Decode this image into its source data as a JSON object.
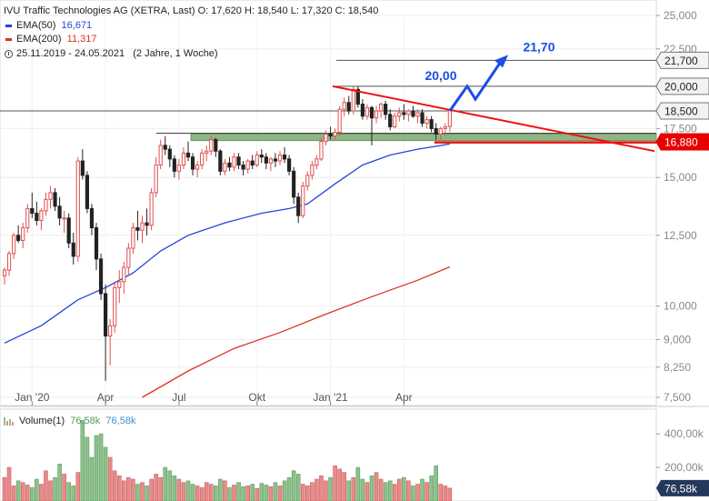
{
  "legend": {
    "title": "IVU Traffic Technologies  AG (XETRA, Last)",
    "ohlc": "O: 17,620  H: 18,540  L: 17,320  C: 18,540",
    "ema50_label": "EMA(50)",
    "ema50_value": "16,671",
    "ema200_label": "EMA(200)",
    "ema200_value": "11,317",
    "period": "25.11.2019 - 24.05.2021",
    "period_note": "(2 Jahre, 1 Woche)"
  },
  "volume_legend": {
    "label": "Volume(1)",
    "value1": "76,58k",
    "value2": "76,58k"
  },
  "colors": {
    "up": "#e05050",
    "down": "#222222",
    "ema50": "#2244dd",
    "ema200": "#dd3322",
    "trendline": "#ee1111",
    "arrow": "#1a4ee6",
    "support_fill": "#8fb585",
    "current_price_badge": "#e60000",
    "vol_up": "#e98a8a",
    "vol_down": "#8cc08c",
    "vol_badge": "#24385c"
  },
  "annotations": {
    "arrow_target_1": "20,00",
    "arrow_target_2": "21,70"
  },
  "chart_data": {
    "type": "candlestick",
    "price_axis": {
      "scale": "log",
      "range": [
        7.5,
        25.0
      ],
      "ticks": [
        "25,000",
        "22,500",
        "17,500",
        "15,000",
        "12,500",
        "10,000",
        "9,000",
        "8,250",
        "7,500"
      ],
      "tick_values": [
        25.0,
        22.5,
        17.5,
        15.0,
        12.5,
        10.0,
        9.0,
        8.25,
        7.5
      ]
    },
    "x_axis": {
      "labels": [
        "Jan '20",
        "Apr",
        "Jul",
        "Okt",
        "Jan '21",
        "Apr"
      ]
    },
    "price_levels": [
      {
        "label": "21,700",
        "value": 21.7,
        "style": "plain"
      },
      {
        "label": "20,000",
        "value": 20.0,
        "style": "plain"
      },
      {
        "label": "18,500",
        "value": 18.5,
        "style": "plain"
      },
      {
        "label": "16,880",
        "value": 16.88,
        "style": "current"
      }
    ],
    "support_zone": [
      16.85,
      17.2
    ],
    "trendline": {
      "start": [
        "Jan '21",
        20.0
      ],
      "end_value": 16.3
    },
    "candles": [
      [
        11.0,
        11.3,
        10.7,
        11.2
      ],
      [
        11.2,
        11.9,
        11.0,
        11.8
      ],
      [
        11.8,
        12.6,
        11.6,
        12.5
      ],
      [
        12.5,
        12.9,
        12.2,
        12.3
      ],
      [
        12.3,
        13.0,
        12.0,
        12.8
      ],
      [
        12.8,
        13.8,
        12.6,
        13.6
      ],
      [
        13.6,
        14.3,
        13.2,
        13.4
      ],
      [
        13.4,
        13.9,
        12.9,
        13.1
      ],
      [
        13.1,
        13.6,
        12.7,
        13.5
      ],
      [
        13.5,
        14.3,
        13.3,
        14.0
      ],
      [
        14.0,
        14.6,
        13.6,
        14.3
      ],
      [
        14.3,
        14.5,
        13.5,
        13.7
      ],
      [
        13.7,
        14.1,
        12.9,
        13.2
      ],
      [
        13.2,
        13.5,
        12.6,
        13.2
      ],
      [
        13.2,
        13.4,
        12.0,
        12.2
      ],
      [
        12.2,
        12.6,
        11.4,
        11.7
      ],
      [
        11.7,
        16.0,
        11.5,
        15.8
      ],
      [
        15.8,
        16.4,
        14.9,
        15.1
      ],
      [
        15.1,
        15.3,
        13.4,
        13.6
      ],
      [
        13.6,
        13.8,
        12.5,
        12.8
      ],
      [
        12.8,
        13.0,
        11.2,
        11.6
      ],
      [
        11.6,
        11.8,
        10.2,
        10.4
      ],
      [
        10.4,
        10.7,
        7.9,
        9.1
      ],
      [
        9.1,
        9.6,
        8.3,
        9.4
      ],
      [
        9.4,
        10.8,
        9.2,
        10.6
      ],
      [
        10.6,
        11.2,
        10.1,
        10.8
      ],
      [
        10.8,
        11.5,
        10.4,
        11.3
      ],
      [
        11.3,
        12.2,
        11.0,
        12.0
      ],
      [
        12.0,
        13.0,
        11.8,
        12.8
      ],
      [
        12.8,
        13.5,
        12.3,
        12.7
      ],
      [
        12.7,
        13.3,
        12.2,
        13.0
      ],
      [
        13.0,
        13.6,
        12.5,
        12.9
      ],
      [
        12.9,
        14.5,
        12.7,
        14.3
      ],
      [
        14.3,
        16.0,
        14.1,
        15.6
      ],
      [
        15.6,
        16.9,
        15.4,
        16.6
      ],
      [
        16.6,
        17.1,
        16.1,
        16.4
      ],
      [
        16.4,
        16.6,
        15.5,
        15.9
      ],
      [
        15.9,
        16.1,
        15.0,
        15.3
      ],
      [
        15.3,
        15.9,
        14.9,
        15.6
      ],
      [
        15.6,
        16.5,
        15.4,
        16.2
      ],
      [
        16.2,
        16.8,
        15.8,
        16.0
      ],
      [
        16.0,
        16.2,
        15.1,
        15.4
      ],
      [
        15.4,
        15.8,
        15.0,
        15.6
      ],
      [
        15.6,
        16.4,
        15.4,
        16.2
      ],
      [
        16.2,
        16.6,
        15.8,
        16.3
      ],
      [
        16.3,
        17.1,
        16.1,
        16.9
      ],
      [
        16.9,
        17.0,
        16.0,
        16.3
      ],
      [
        16.3,
        16.4,
        15.1,
        15.3
      ],
      [
        15.3,
        15.9,
        15.1,
        15.7
      ],
      [
        15.7,
        16.0,
        15.3,
        15.5
      ],
      [
        15.5,
        16.2,
        15.3,
        16.0
      ],
      [
        16.0,
        16.2,
        15.4,
        15.6
      ],
      [
        15.6,
        15.8,
        15.1,
        15.4
      ],
      [
        15.4,
        15.9,
        15.2,
        15.8
      ],
      [
        15.8,
        16.1,
        15.4,
        15.6
      ],
      [
        15.6,
        16.3,
        15.5,
        16.1
      ],
      [
        16.1,
        16.4,
        15.7,
        16.0
      ],
      [
        16.0,
        16.2,
        15.4,
        15.7
      ],
      [
        15.7,
        16.0,
        15.3,
        15.9
      ],
      [
        15.9,
        16.2,
        15.5,
        15.8
      ],
      [
        15.8,
        16.3,
        15.6,
        16.1
      ],
      [
        16.1,
        16.5,
        15.7,
        15.9
      ],
      [
        15.9,
        16.1,
        15.1,
        15.3
      ],
      [
        15.3,
        15.5,
        13.8,
        14.1
      ],
      [
        14.1,
        14.3,
        13.0,
        13.3
      ],
      [
        13.3,
        14.8,
        13.2,
        14.6
      ],
      [
        14.6,
        15.3,
        14.4,
        15.1
      ],
      [
        15.1,
        15.8,
        14.9,
        15.6
      ],
      [
        15.6,
        16.1,
        15.4,
        15.9
      ],
      [
        15.9,
        17.0,
        15.8,
        16.8
      ],
      [
        16.8,
        17.4,
        16.6,
        17.2
      ],
      [
        17.2,
        17.6,
        16.9,
        17.1
      ],
      [
        17.1,
        17.5,
        16.9,
        17.3
      ],
      [
        17.3,
        18.8,
        17.1,
        18.6
      ],
      [
        18.6,
        19.3,
        18.2,
        19.0
      ],
      [
        19.0,
        19.4,
        18.3,
        18.5
      ],
      [
        18.5,
        20.0,
        18.3,
        19.8
      ],
      [
        19.8,
        20.0,
        18.7,
        18.9
      ],
      [
        18.9,
        19.2,
        18.0,
        18.2
      ],
      [
        18.2,
        18.9,
        18.0,
        18.7
      ],
      [
        18.7,
        18.8,
        16.6,
        18.1
      ],
      [
        18.1,
        18.8,
        17.8,
        18.5
      ],
      [
        18.5,
        19.0,
        18.1,
        18.9
      ],
      [
        18.9,
        19.1,
        18.0,
        18.3
      ],
      [
        18.3,
        18.6,
        17.4,
        17.6
      ],
      [
        17.6,
        18.4,
        17.5,
        18.2
      ],
      [
        18.2,
        18.7,
        17.9,
        18.4
      ],
      [
        18.4,
        18.9,
        18.0,
        18.3
      ],
      [
        18.3,
        18.6,
        17.9,
        18.5
      ],
      [
        18.5,
        18.8,
        18.1,
        18.2
      ],
      [
        18.2,
        18.6,
        17.8,
        18.4
      ],
      [
        18.4,
        18.6,
        17.6,
        17.8
      ],
      [
        17.8,
        18.2,
        17.5,
        18.0
      ],
      [
        18.0,
        18.2,
        17.3,
        17.5
      ],
      [
        17.5,
        17.8,
        16.9,
        17.2
      ],
      [
        17.2,
        17.6,
        16.9,
        17.5
      ],
      [
        17.5,
        17.8,
        17.1,
        17.6
      ],
      [
        17.62,
        18.54,
        17.32,
        18.54
      ]
    ],
    "ema50": [
      [
        0,
        8.9
      ],
      [
        8,
        9.4
      ],
      [
        16,
        10.2
      ],
      [
        22,
        10.6
      ],
      [
        28,
        11.1
      ],
      [
        34,
        11.9
      ],
      [
        40,
        12.5
      ],
      [
        48,
        13.0
      ],
      [
        56,
        13.4
      ],
      [
        62,
        13.6
      ],
      [
        66,
        13.8
      ],
      [
        72,
        14.7
      ],
      [
        78,
        15.6
      ],
      [
        84,
        16.1
      ],
      [
        90,
        16.4
      ],
      [
        97,
        16.67
      ]
    ],
    "ema200": [
      [
        30,
        7.5
      ],
      [
        40,
        8.15
      ],
      [
        50,
        8.75
      ],
      [
        60,
        9.2
      ],
      [
        70,
        9.75
      ],
      [
        80,
        10.3
      ],
      [
        90,
        10.85
      ],
      [
        97,
        11.317
      ]
    ],
    "volume": {
      "axis_ticks": [
        "400,00k",
        "200,00k"
      ],
      "tick_values": [
        400,
        200
      ],
      "max": 520,
      "values": [
        140,
        200,
        90,
        120,
        110,
        95,
        80,
        130,
        100,
        180,
        120,
        140,
        220,
        160,
        110,
        90,
        170,
        480,
        380,
        260,
        390,
        400,
        320,
        260,
        180,
        150,
        120,
        140,
        130,
        100,
        110,
        90,
        130,
        160,
        140,
        200,
        180,
        150,
        130,
        110,
        120,
        100,
        90,
        80,
        110,
        100,
        90,
        130,
        120,
        80,
        95,
        110,
        85,
        90,
        100,
        75,
        105,
        95,
        85,
        110,
        90,
        120,
        140,
        180,
        160,
        100,
        90,
        110,
        130,
        150,
        120,
        140,
        210,
        190,
        170,
        120,
        140,
        200,
        130,
        110,
        150,
        170,
        130,
        110,
        120,
        100,
        130,
        140,
        120,
        90,
        100,
        130,
        110,
        150,
        210,
        100,
        90,
        76.58
      ]
    }
  }
}
